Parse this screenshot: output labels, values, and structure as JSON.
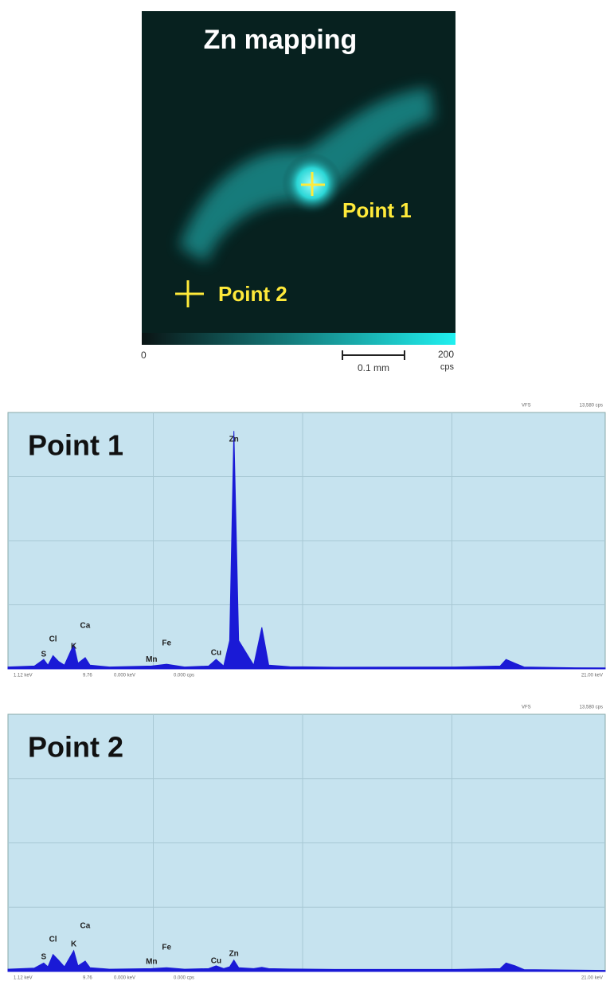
{
  "mapping": {
    "title": "Zn mapping",
    "point_1": "Point 1",
    "point_2": "Point 2",
    "scale_min": "0",
    "scale_max": "200",
    "scale_unit": "cps",
    "scale_bar": "0.1 mm"
  },
  "chart_data": [
    {
      "type": "area",
      "title": "Point 1",
      "color": "#1a1ad6",
      "xlim": [
        1.12,
        21.0
      ],
      "ylim": [
        0,
        13580
      ],
      "corner_labels": [
        "VFS",
        "13,580 cps"
      ],
      "footer_labels": [
        "1.12 keV",
        "9.76",
        "0.000 keV",
        "0.000 cps",
        "21.00 keV"
      ],
      "x": [
        1.12,
        2.0,
        2.31,
        2.45,
        2.62,
        2.8,
        3.0,
        3.31,
        3.45,
        3.69,
        3.85,
        4.5,
        5.9,
        6.4,
        7.0,
        7.8,
        8.05,
        8.3,
        8.5,
        8.64,
        8.8,
        9.3,
        9.57,
        9.8,
        10.5,
        12.0,
        16.0,
        17.5,
        17.7,
        18.0,
        18.3,
        20.0,
        21.0
      ],
      "values": [
        100,
        150,
        500,
        200,
        700,
        400,
        200,
        1300,
        300,
        600,
        200,
        100,
        150,
        250,
        100,
        150,
        500,
        150,
        1500,
        12600,
        1500,
        200,
        2200,
        200,
        120,
        90,
        100,
        150,
        500,
        300,
        100,
        60,
        50
      ],
      "annotations": [
        {
          "text": "S",
          "x": 2.31,
          "y": 760
        },
        {
          "text": "Cl",
          "x": 2.62,
          "y": 1560
        },
        {
          "text": "K",
          "x": 3.31,
          "y": 1180
        },
        {
          "text": "Ca",
          "x": 3.69,
          "y": 2280
        },
        {
          "text": "Mn",
          "x": 5.9,
          "y": 500
        },
        {
          "text": "Fe",
          "x": 6.4,
          "y": 1350
        },
        {
          "text": "Cu",
          "x": 8.05,
          "y": 840
        },
        {
          "text": "Zn",
          "x": 8.64,
          "y": 12150
        }
      ]
    },
    {
      "type": "area",
      "title": "Point 2",
      "color": "#1a1ad6",
      "xlim": [
        1.12,
        21.0
      ],
      "ylim": [
        0,
        13580
      ],
      "corner_labels": [
        "VFS",
        "13,580 cps"
      ],
      "footer_labels": [
        "1.12 keV",
        "9.76",
        "0.000 keV",
        "0.000 cps",
        "21.00 keV"
      ],
      "x": [
        1.12,
        2.0,
        2.31,
        2.45,
        2.62,
        2.8,
        3.0,
        3.31,
        3.45,
        3.69,
        3.85,
        4.5,
        5.9,
        6.4,
        7.0,
        7.8,
        8.05,
        8.3,
        8.5,
        8.64,
        8.8,
        9.3,
        9.57,
        9.8,
        10.5,
        12.0,
        16.0,
        17.5,
        17.7,
        18.0,
        18.3,
        20.0,
        21.0
      ],
      "values": [
        120,
        180,
        450,
        250,
        900,
        600,
        250,
        1100,
        300,
        550,
        200,
        120,
        150,
        200,
        120,
        150,
        300,
        150,
        250,
        600,
        200,
        150,
        220,
        150,
        130,
        110,
        110,
        150,
        450,
        300,
        100,
        70,
        60
      ],
      "annotations": [
        {
          "text": "S",
          "x": 2.31,
          "y": 760
        },
        {
          "text": "Cl",
          "x": 2.62,
          "y": 1680
        },
        {
          "text": "K",
          "x": 3.31,
          "y": 1430
        },
        {
          "text": "Ca",
          "x": 3.69,
          "y": 2400
        },
        {
          "text": "Mn",
          "x": 5.9,
          "y": 510
        },
        {
          "text": "Fe",
          "x": 6.4,
          "y": 1260
        },
        {
          "text": "Cu",
          "x": 8.05,
          "y": 550
        },
        {
          "text": "Zn",
          "x": 8.64,
          "y": 925
        }
      ]
    }
  ]
}
